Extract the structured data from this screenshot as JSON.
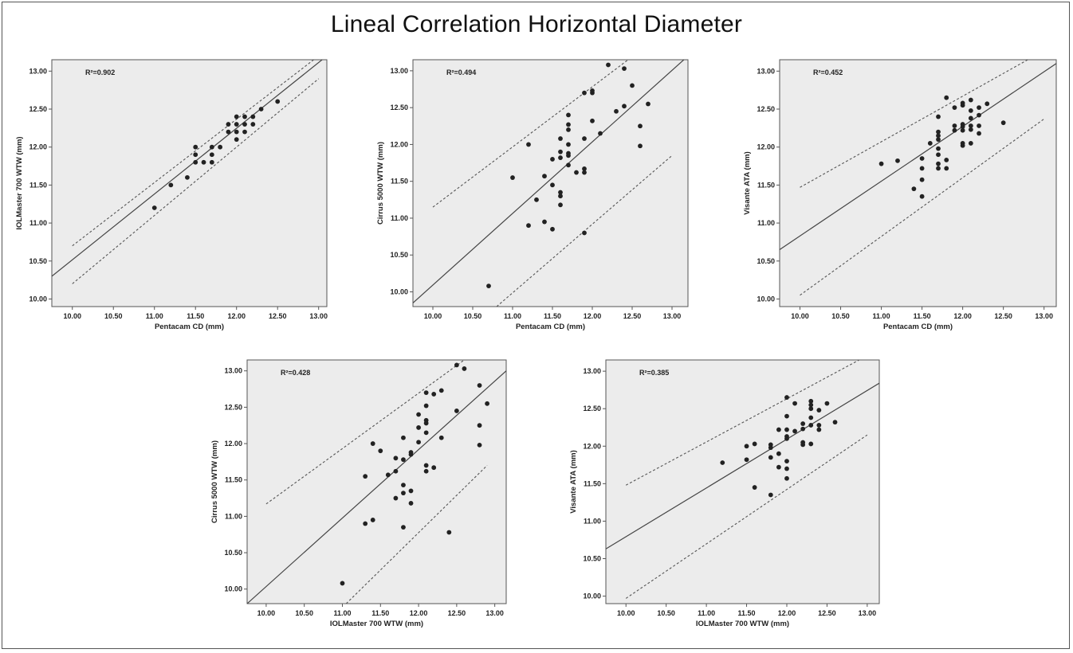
{
  "title": "Lineal Correlation Horizontal Diameter",
  "chart_data": [
    {
      "type": "scatter",
      "r2_label": "R²=0.902",
      "xlabel": "Pentacam CD (mm)",
      "ylabel": "IOLMaster 700 WTW (mm)",
      "xlim": [
        9.75,
        13.1
      ],
      "ylim": [
        9.9,
        13.15
      ],
      "xticks": [
        "10.00",
        "10.50",
        "11.00",
        "11.50",
        "12.00",
        "12.50",
        "13.00"
      ],
      "yticks": [
        "10.00",
        "10.50",
        "11.00",
        "11.50",
        "12.00",
        "12.50",
        "13.00"
      ],
      "fit": [
        [
          9.75,
          10.3
        ],
        [
          13.1,
          13.2
        ]
      ],
      "ci_upper": [
        [
          10.0,
          10.7
        ],
        [
          13.0,
          13.2
        ]
      ],
      "ci_lower": [
        [
          10.0,
          10.2
        ],
        [
          13.0,
          12.9
        ]
      ],
      "points": [
        [
          11.0,
          11.2
        ],
        [
          11.2,
          11.5
        ],
        [
          11.4,
          11.6
        ],
        [
          11.5,
          11.8
        ],
        [
          11.5,
          11.9
        ],
        [
          11.5,
          12.0
        ],
        [
          11.6,
          11.8
        ],
        [
          11.7,
          11.8
        ],
        [
          11.7,
          11.9
        ],
        [
          11.7,
          12.0
        ],
        [
          11.8,
          12.0
        ],
        [
          11.9,
          12.2
        ],
        [
          11.9,
          12.3
        ],
        [
          12.0,
          12.1
        ],
        [
          12.0,
          12.2
        ],
        [
          12.0,
          12.3
        ],
        [
          12.0,
          12.4
        ],
        [
          12.1,
          12.2
        ],
        [
          12.1,
          12.3
        ],
        [
          12.1,
          12.4
        ],
        [
          12.2,
          12.3
        ],
        [
          12.2,
          12.4
        ],
        [
          12.3,
          12.5
        ],
        [
          12.5,
          12.6
        ]
      ]
    },
    {
      "type": "scatter",
      "r2_label": "R²=0.494",
      "xlabel": "Pentacam CD (mm)",
      "ylabel": "Cirrus 5000 WTW (mm)",
      "xlim": [
        9.75,
        13.2
      ],
      "ylim": [
        9.8,
        13.15
      ],
      "xticks": [
        "10.00",
        "10.50",
        "11.00",
        "11.50",
        "12.00",
        "12.50",
        "13.00"
      ],
      "yticks": [
        "10.00",
        "10.50",
        "11.00",
        "11.50",
        "12.00",
        "12.50",
        "13.00"
      ],
      "fit": [
        [
          9.75,
          9.85
        ],
        [
          13.2,
          13.2
        ]
      ],
      "ci_upper": [
        [
          10.0,
          11.15
        ],
        [
          12.45,
          13.15
        ]
      ],
      "ci_lower": [
        [
          10.8,
          9.8
        ],
        [
          13.0,
          11.85
        ]
      ],
      "points": [
        [
          10.7,
          10.08
        ],
        [
          11.0,
          11.55
        ],
        [
          11.2,
          12.0
        ],
        [
          11.2,
          10.9
        ],
        [
          11.3,
          11.25
        ],
        [
          11.4,
          10.95
        ],
        [
          11.4,
          11.57
        ],
        [
          11.5,
          11.8
        ],
        [
          11.5,
          11.45
        ],
        [
          11.5,
          10.85
        ],
        [
          11.6,
          11.35
        ],
        [
          11.6,
          11.3
        ],
        [
          11.6,
          11.18
        ],
        [
          11.6,
          11.82
        ],
        [
          11.6,
          11.9
        ],
        [
          11.6,
          12.08
        ],
        [
          11.7,
          11.72
        ],
        [
          11.7,
          11.85
        ],
        [
          11.7,
          11.88
        ],
        [
          11.7,
          12.0
        ],
        [
          11.7,
          12.2
        ],
        [
          11.7,
          12.27
        ],
        [
          11.7,
          12.4
        ],
        [
          11.8,
          11.62
        ],
        [
          11.9,
          11.62
        ],
        [
          11.9,
          11.67
        ],
        [
          11.9,
          12.08
        ],
        [
          11.9,
          12.7
        ],
        [
          11.9,
          10.8
        ],
        [
          12.0,
          12.32
        ],
        [
          12.0,
          12.7
        ],
        [
          12.0,
          12.73
        ],
        [
          12.1,
          12.15
        ],
        [
          12.2,
          13.08
        ],
        [
          12.3,
          12.45
        ],
        [
          12.4,
          13.03
        ],
        [
          12.4,
          12.52
        ],
        [
          12.5,
          12.8
        ],
        [
          12.6,
          12.25
        ],
        [
          12.6,
          11.98
        ],
        [
          12.7,
          12.55
        ]
      ]
    },
    {
      "type": "scatter",
      "r2_label": "R²=0.452",
      "xlabel": "Pentacam CD (mm)",
      "ylabel": "Visante ATA (mm)",
      "xlim": [
        9.75,
        13.15
      ],
      "ylim": [
        9.9,
        13.15
      ],
      "xticks": [
        "10.00",
        "10.50",
        "11.00",
        "11.50",
        "12.00",
        "12.50",
        "13.00"
      ],
      "yticks": [
        "10.00",
        "10.50",
        "11.00",
        "11.50",
        "12.00",
        "12.50",
        "13.00"
      ],
      "fit": [
        [
          9.75,
          10.65
        ],
        [
          13.15,
          13.1
        ]
      ],
      "ci_upper": [
        [
          10.0,
          11.47
        ],
        [
          12.8,
          13.15
        ]
      ],
      "ci_lower": [
        [
          10.0,
          10.05
        ],
        [
          13.0,
          12.37
        ]
      ],
      "points": [
        [
          11.0,
          11.78
        ],
        [
          11.2,
          11.82
        ],
        [
          11.4,
          11.45
        ],
        [
          11.5,
          11.35
        ],
        [
          11.5,
          11.57
        ],
        [
          11.5,
          11.72
        ],
        [
          11.5,
          11.85
        ],
        [
          11.6,
          12.05
        ],
        [
          11.7,
          11.72
        ],
        [
          11.7,
          11.78
        ],
        [
          11.7,
          11.9
        ],
        [
          11.7,
          11.98
        ],
        [
          11.7,
          12.1
        ],
        [
          11.7,
          12.15
        ],
        [
          11.7,
          12.2
        ],
        [
          11.7,
          12.4
        ],
        [
          11.8,
          11.72
        ],
        [
          11.8,
          11.83
        ],
        [
          11.8,
          12.65
        ],
        [
          11.9,
          12.22
        ],
        [
          11.9,
          12.28
        ],
        [
          11.9,
          12.52
        ],
        [
          12.0,
          12.02
        ],
        [
          12.0,
          12.05
        ],
        [
          12.0,
          12.22
        ],
        [
          12.0,
          12.27
        ],
        [
          12.0,
          12.3
        ],
        [
          12.0,
          12.55
        ],
        [
          12.0,
          12.58
        ],
        [
          12.1,
          12.05
        ],
        [
          12.1,
          12.23
        ],
        [
          12.1,
          12.28
        ],
        [
          12.1,
          12.38
        ],
        [
          12.1,
          12.48
        ],
        [
          12.1,
          12.62
        ],
        [
          12.2,
          12.18
        ],
        [
          12.2,
          12.28
        ],
        [
          12.2,
          12.42
        ],
        [
          12.2,
          12.52
        ],
        [
          12.3,
          12.57
        ],
        [
          12.5,
          12.32
        ]
      ]
    },
    {
      "type": "scatter",
      "r2_label": "R²=0.428",
      "xlabel": "IOLMaster 700 WTW (mm)",
      "ylabel": "Cirrus 5000 WTW (mm)",
      "xlim": [
        9.75,
        13.15
      ],
      "ylim": [
        9.8,
        13.15
      ],
      "xticks": [
        "10.00",
        "10.50",
        "11.00",
        "11.50",
        "12.00",
        "12.50",
        "13.00"
      ],
      "yticks": [
        "10.00",
        "10.50",
        "11.00",
        "11.50",
        "12.00",
        "12.50",
        "13.00"
      ],
      "fit": [
        [
          9.75,
          9.8
        ],
        [
          13.15,
          13.0
        ]
      ],
      "ci_upper": [
        [
          10.0,
          11.17
        ],
        [
          12.6,
          13.15
        ]
      ],
      "ci_lower": [
        [
          11.05,
          9.8
        ],
        [
          12.9,
          11.7
        ]
      ],
      "points": [
        [
          11.0,
          10.08
        ],
        [
          11.3,
          11.55
        ],
        [
          11.3,
          10.9
        ],
        [
          11.4,
          12.0
        ],
        [
          11.4,
          10.95
        ],
        [
          11.5,
          11.9
        ],
        [
          11.6,
          11.57
        ],
        [
          11.7,
          11.25
        ],
        [
          11.7,
          11.62
        ],
        [
          11.7,
          11.8
        ],
        [
          11.8,
          10.85
        ],
        [
          11.8,
          11.32
        ],
        [
          11.8,
          11.43
        ],
        [
          11.8,
          11.78
        ],
        [
          11.8,
          12.08
        ],
        [
          11.9,
          11.18
        ],
        [
          11.9,
          11.35
        ],
        [
          11.9,
          11.85
        ],
        [
          11.9,
          11.88
        ],
        [
          12.0,
          12.02
        ],
        [
          12.0,
          12.22
        ],
        [
          12.0,
          12.4
        ],
        [
          12.1,
          11.62
        ],
        [
          12.1,
          11.7
        ],
        [
          12.1,
          12.15
        ],
        [
          12.1,
          12.28
        ],
        [
          12.1,
          12.32
        ],
        [
          12.1,
          12.52
        ],
        [
          12.1,
          12.7
        ],
        [
          12.2,
          11.67
        ],
        [
          12.2,
          12.68
        ],
        [
          12.3,
          12.08
        ],
        [
          12.3,
          12.73
        ],
        [
          12.4,
          10.78
        ],
        [
          12.5,
          12.45
        ],
        [
          12.5,
          13.08
        ],
        [
          12.6,
          13.03
        ],
        [
          12.8,
          12.25
        ],
        [
          12.8,
          11.98
        ],
        [
          12.8,
          12.8
        ],
        [
          12.9,
          12.55
        ]
      ]
    },
    {
      "type": "scatter",
      "r2_label": "R²=0.385",
      "xlabel": "IOLMaster 700 WTW (mm)",
      "ylabel": "Visante ATA (mm)",
      "xlim": [
        9.75,
        13.15
      ],
      "ylim": [
        9.9,
        13.15
      ],
      "xticks": [
        "10.00",
        "10.50",
        "11.00",
        "11.50",
        "12.00",
        "12.50",
        "13.00"
      ],
      "yticks": [
        "10.00",
        "10.50",
        "11.00",
        "11.50",
        "12.00",
        "12.50",
        "13.00"
      ],
      "fit": [
        [
          9.75,
          10.63
        ],
        [
          13.15,
          12.84
        ]
      ],
      "ci_upper": [
        [
          10.0,
          11.48
        ],
        [
          12.9,
          13.15
        ]
      ],
      "ci_lower": [
        [
          10.0,
          9.97
        ],
        [
          13.0,
          12.15
        ]
      ],
      "points": [
        [
          11.2,
          11.78
        ],
        [
          11.5,
          11.82
        ],
        [
          11.5,
          12.0
        ],
        [
          11.6,
          11.45
        ],
        [
          11.6,
          12.03
        ],
        [
          11.8,
          11.35
        ],
        [
          11.8,
          11.85
        ],
        [
          11.8,
          11.98
        ],
        [
          11.8,
          12.02
        ],
        [
          11.9,
          11.72
        ],
        [
          11.9,
          11.9
        ],
        [
          11.9,
          12.22
        ],
        [
          12.0,
          11.57
        ],
        [
          12.0,
          11.7
        ],
        [
          12.0,
          11.8
        ],
        [
          12.0,
          12.1
        ],
        [
          12.0,
          12.13
        ],
        [
          12.0,
          12.22
        ],
        [
          12.0,
          12.4
        ],
        [
          12.0,
          12.65
        ],
        [
          12.1,
          12.2
        ],
        [
          12.1,
          12.57
        ],
        [
          12.2,
          12.02
        ],
        [
          12.2,
          12.05
        ],
        [
          12.2,
          12.23
        ],
        [
          12.2,
          12.3
        ],
        [
          12.3,
          12.03
        ],
        [
          12.3,
          12.28
        ],
        [
          12.3,
          12.38
        ],
        [
          12.3,
          12.5
        ],
        [
          12.3,
          12.55
        ],
        [
          12.3,
          12.6
        ],
        [
          12.4,
          12.22
        ],
        [
          12.4,
          12.28
        ],
        [
          12.4,
          12.48
        ],
        [
          12.5,
          12.57
        ],
        [
          12.6,
          12.32
        ]
      ]
    }
  ]
}
